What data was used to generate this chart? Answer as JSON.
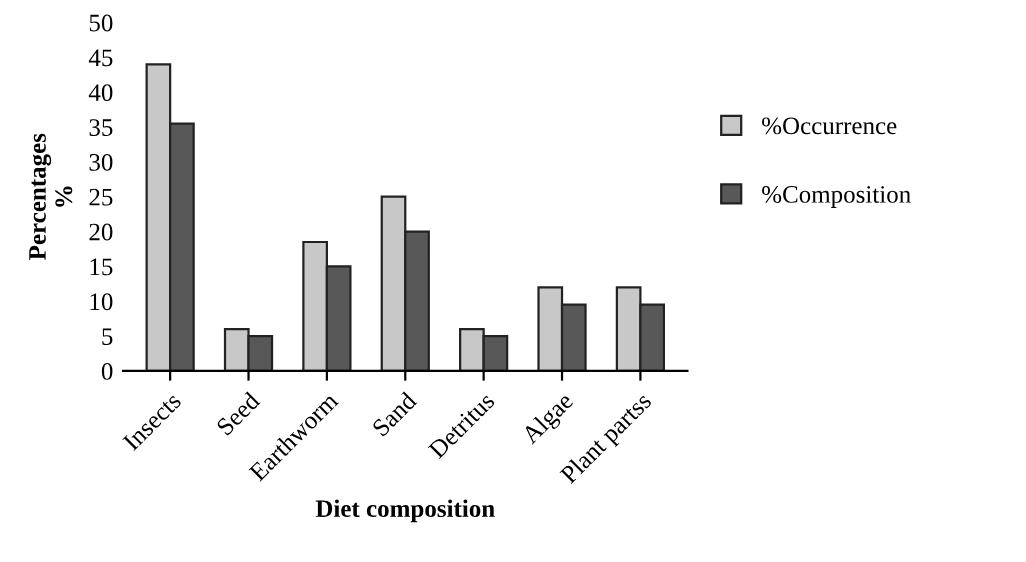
{
  "chart_data": {
    "type": "bar",
    "xlabel": "Diet composition",
    "ylabel": "Percentages\n%",
    "categories": [
      "Insects",
      "Seed",
      "Earthworm",
      "Sand",
      "Detritus",
      "Algae",
      "Plant partss"
    ],
    "series": [
      {
        "name": "%Occurrence",
        "color": "#c8c8c8",
        "values": [
          44,
          6,
          18.5,
          25,
          6,
          12,
          12
        ]
      },
      {
        "name": "%Composition",
        "color": "#585858",
        "values": [
          35.5,
          5,
          15,
          20,
          5,
          9.5,
          9.5
        ]
      }
    ],
    "ylim": [
      0,
      50
    ],
    "yticks": [
      0,
      5,
      10,
      15,
      20,
      25,
      30,
      35,
      40,
      45,
      50
    ],
    "grid": false,
    "legend": "right"
  }
}
